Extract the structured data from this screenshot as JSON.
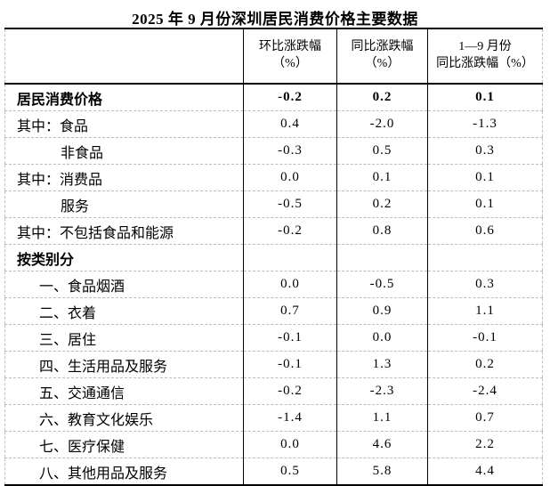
{
  "title": "2025 年 9 月份深圳居民消费价格主要数据",
  "table": {
    "columns": [
      {
        "line1": "环比涨跌幅",
        "line2": "（%）"
      },
      {
        "line1": "同比涨跌幅",
        "line2": "（%）"
      },
      {
        "line1": "1—9 月份",
        "line2": "同比涨跌幅（%）"
      }
    ],
    "rows": [
      {
        "label": "居民消费价格",
        "bold": true,
        "indent": 0,
        "values": [
          "-0.2",
          "0.2",
          "0.1"
        ]
      },
      {
        "label": "其中：食品",
        "bold": false,
        "indent": 0,
        "values": [
          "0.4",
          "-2.0",
          "-1.3"
        ]
      },
      {
        "label": "非食品",
        "bold": false,
        "indent": 2,
        "values": [
          "-0.3",
          "0.5",
          "0.3"
        ]
      },
      {
        "label": "其中：消费品",
        "bold": false,
        "indent": 0,
        "values": [
          "0.0",
          "0.1",
          "0.1"
        ]
      },
      {
        "label": "服务",
        "bold": false,
        "indent": 2,
        "values": [
          "-0.5",
          "0.2",
          "0.1"
        ]
      },
      {
        "label": "其中：不包括食品和能源",
        "bold": false,
        "indent": 0,
        "values": [
          "-0.2",
          "0.8",
          "0.6"
        ]
      },
      {
        "label": "按类别分",
        "bold": true,
        "indent": 0,
        "values": [
          "",
          "",
          ""
        ]
      },
      {
        "label": "一、食品烟酒",
        "bold": false,
        "indent": 1,
        "values": [
          "0.0",
          "-0.5",
          "0.3"
        ]
      },
      {
        "label": "二、衣着",
        "bold": false,
        "indent": 1,
        "values": [
          "0.7",
          "0.9",
          "1.1"
        ]
      },
      {
        "label": "三、居住",
        "bold": false,
        "indent": 1,
        "values": [
          "-0.1",
          "0.0",
          "-0.1"
        ]
      },
      {
        "label": "四、生活用品及服务",
        "bold": false,
        "indent": 1,
        "values": [
          "-0.1",
          "1.3",
          "0.2"
        ]
      },
      {
        "label": "五、交通通信",
        "bold": false,
        "indent": 1,
        "values": [
          "-0.2",
          "-2.3",
          "-2.4"
        ]
      },
      {
        "label": "六、教育文化娱乐",
        "bold": false,
        "indent": 1,
        "values": [
          "-1.4",
          "1.1",
          "0.7"
        ]
      },
      {
        "label": "七、医疗保健",
        "bold": false,
        "indent": 1,
        "values": [
          "0.0",
          "4.6",
          "2.2"
        ]
      },
      {
        "label": "八、其他用品及服务",
        "bold": false,
        "indent": 1,
        "values": [
          "0.5",
          "5.8",
          "4.4"
        ]
      }
    ]
  }
}
